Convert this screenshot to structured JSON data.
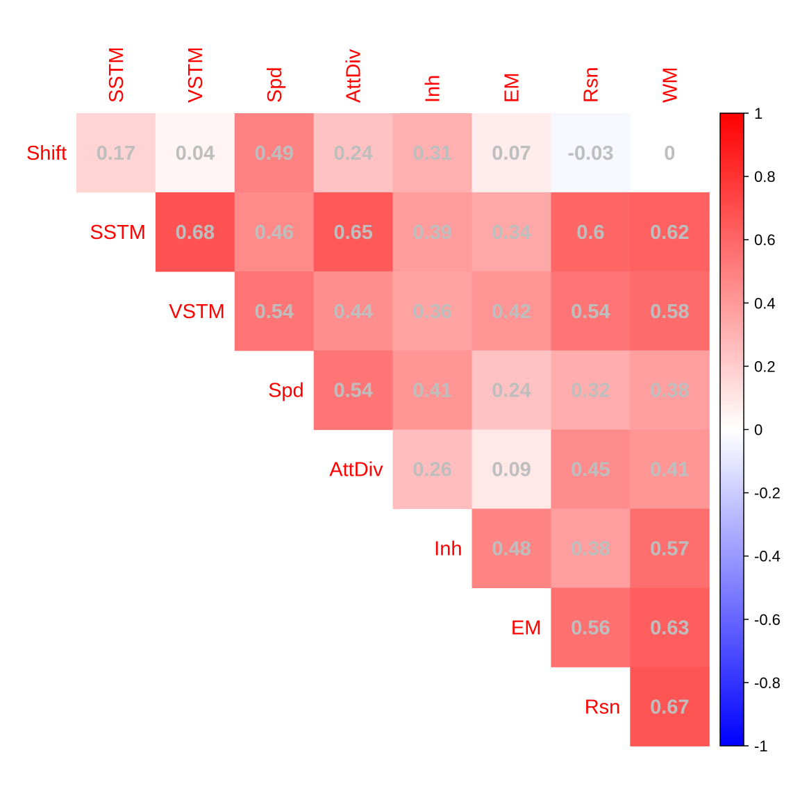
{
  "chart_data": {
    "type": "heatmap",
    "title": "",
    "row_labels": [
      "Shift",
      "SSTM",
      "VSTM",
      "Spd",
      "AttDiv",
      "Inh",
      "EM",
      "Rsn"
    ],
    "col_labels": [
      "SSTM",
      "VSTM",
      "Spd",
      "AttDiv",
      "Inh",
      "EM",
      "Rsn",
      "WM"
    ],
    "matrix": [
      [
        0.17,
        0.04,
        0.49,
        0.24,
        0.31,
        0.07,
        -0.03,
        0
      ],
      [
        null,
        0.68,
        0.46,
        0.65,
        0.39,
        0.34,
        0.6,
        0.62
      ],
      [
        null,
        null,
        0.54,
        0.44,
        0.36,
        0.42,
        0.54,
        0.58
      ],
      [
        null,
        null,
        null,
        0.54,
        0.41,
        0.24,
        0.32,
        0.38
      ],
      [
        null,
        null,
        null,
        null,
        0.26,
        0.09,
        0.45,
        0.41
      ],
      [
        null,
        null,
        null,
        null,
        null,
        0.48,
        0.38,
        0.57
      ],
      [
        null,
        null,
        null,
        null,
        null,
        null,
        0.56,
        0.63
      ],
      [
        null,
        null,
        null,
        null,
        null,
        null,
        null,
        0.67
      ]
    ],
    "value_labels": [
      [
        "0.17",
        "0.04",
        "0.49",
        "0.24",
        "0.31",
        "0.07",
        "-0.03",
        "0"
      ],
      [
        "",
        "0.68",
        "0.46",
        "0.65",
        "0.39",
        "0.34",
        "0.6",
        "0.62"
      ],
      [
        "",
        "",
        "0.54",
        "0.44",
        "0.36",
        "0.42",
        "0.54",
        "0.58"
      ],
      [
        "",
        "",
        "",
        "0.54",
        "0.41",
        "0.24",
        "0.32",
        "0.38"
      ],
      [
        "",
        "",
        "",
        "",
        "0.26",
        "0.09",
        "0.45",
        "0.41"
      ],
      [
        "",
        "",
        "",
        "",
        "",
        "0.48",
        "0.38",
        "0.57"
      ],
      [
        "",
        "",
        "",
        "",
        "",
        "",
        "0.56",
        "0.63"
      ],
      [
        "",
        "",
        "",
        "",
        "",
        "",
        "",
        "0.67"
      ]
    ],
    "legend": {
      "range": [
        -1,
        1
      ],
      "ticks": [
        1,
        0.8,
        0.6,
        0.4,
        0.2,
        0,
        -0.2,
        -0.4,
        -0.6,
        -0.8,
        -1
      ],
      "tick_labels": [
        "1",
        "0.8",
        "0.6",
        "0.4",
        "0.2",
        "0",
        "-0.2",
        "-0.4",
        "-0.6",
        "-0.8",
        "-1"
      ],
      "placement": "right"
    },
    "colors": {
      "positive": "#FF0000",
      "neutral": "#FFFFFF",
      "negative": "#0000FF",
      "label_text": "#FF0000",
      "value_text": "#BEBEBE"
    }
  }
}
